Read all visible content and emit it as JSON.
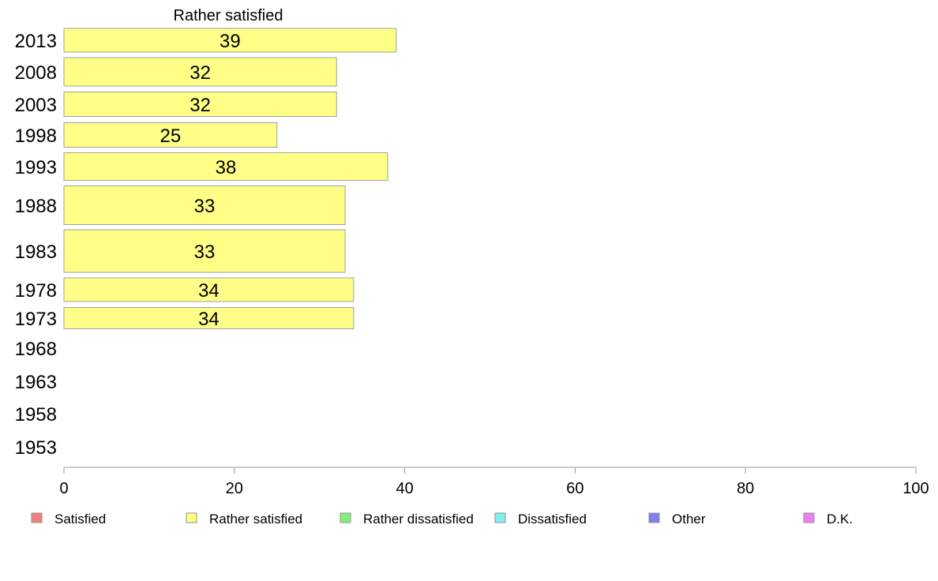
{
  "chart_data": {
    "type": "bar",
    "orientation": "horizontal",
    "title": "Rather satisfied",
    "categories": [
      "2013",
      "2008",
      "2003",
      "1998",
      "1993",
      "1988",
      "1983",
      "1978",
      "1973",
      "1968",
      "1963",
      "1958",
      "1953"
    ],
    "series": [
      {
        "name": "Rather satisfied",
        "values": [
          39,
          32,
          32,
          25,
          38,
          33,
          33,
          34,
          34,
          null,
          null,
          null,
          null
        ],
        "labels": [
          "39",
          "32",
          "32",
          "25",
          "38",
          "33",
          "33",
          "34",
          "34",
          "",
          "",
          "",
          ""
        ],
        "color": "#ffff88"
      }
    ],
    "xlim": [
      0,
      100
    ],
    "xticks": [
      "0",
      "20",
      "40",
      "60",
      "80",
      "100"
    ],
    "legend": {
      "placement": "bottom",
      "items": [
        {
          "label": "Satisfied",
          "color": "#f08080"
        },
        {
          "label": "Rather satisfied",
          "color": "#ffff80"
        },
        {
          "label": "Rather dissatisfied",
          "color": "#80f080"
        },
        {
          "label": "Dissatisfied",
          "color": "#80f0f0"
        },
        {
          "label": "Other",
          "color": "#8080f0"
        },
        {
          "label": "D.K.",
          "color": "#f080f0"
        }
      ]
    }
  }
}
